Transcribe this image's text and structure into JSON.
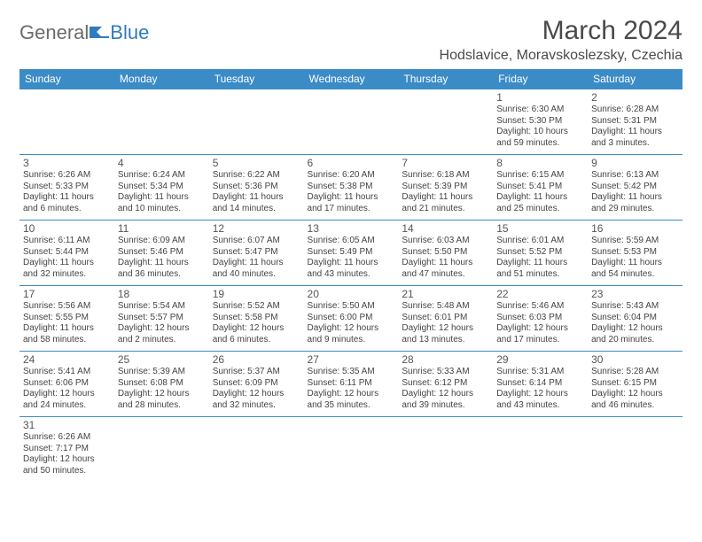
{
  "logo": {
    "text1": "General",
    "text2": "Blue"
  },
  "title": "March 2024",
  "location": "Hodslavice, Moravskoslezsky, Czechia",
  "colors": {
    "header_bg": "#3b8bc7",
    "header_text": "#ffffff",
    "border": "#3b8bc7",
    "logo_gray": "#6b6b6b",
    "logo_blue": "#2f7bbf",
    "text": "#444444"
  },
  "weekdays": [
    "Sunday",
    "Monday",
    "Tuesday",
    "Wednesday",
    "Thursday",
    "Friday",
    "Saturday"
  ],
  "weeks": [
    [
      null,
      null,
      null,
      null,
      null,
      {
        "n": "1",
        "sr": "Sunrise: 6:30 AM",
        "ss": "Sunset: 5:30 PM",
        "dl": "Daylight: 10 hours and 59 minutes."
      },
      {
        "n": "2",
        "sr": "Sunrise: 6:28 AM",
        "ss": "Sunset: 5:31 PM",
        "dl": "Daylight: 11 hours and 3 minutes."
      }
    ],
    [
      {
        "n": "3",
        "sr": "Sunrise: 6:26 AM",
        "ss": "Sunset: 5:33 PM",
        "dl": "Daylight: 11 hours and 6 minutes."
      },
      {
        "n": "4",
        "sr": "Sunrise: 6:24 AM",
        "ss": "Sunset: 5:34 PM",
        "dl": "Daylight: 11 hours and 10 minutes."
      },
      {
        "n": "5",
        "sr": "Sunrise: 6:22 AM",
        "ss": "Sunset: 5:36 PM",
        "dl": "Daylight: 11 hours and 14 minutes."
      },
      {
        "n": "6",
        "sr": "Sunrise: 6:20 AM",
        "ss": "Sunset: 5:38 PM",
        "dl": "Daylight: 11 hours and 17 minutes."
      },
      {
        "n": "7",
        "sr": "Sunrise: 6:18 AM",
        "ss": "Sunset: 5:39 PM",
        "dl": "Daylight: 11 hours and 21 minutes."
      },
      {
        "n": "8",
        "sr": "Sunrise: 6:15 AM",
        "ss": "Sunset: 5:41 PM",
        "dl": "Daylight: 11 hours and 25 minutes."
      },
      {
        "n": "9",
        "sr": "Sunrise: 6:13 AM",
        "ss": "Sunset: 5:42 PM",
        "dl": "Daylight: 11 hours and 29 minutes."
      }
    ],
    [
      {
        "n": "10",
        "sr": "Sunrise: 6:11 AM",
        "ss": "Sunset: 5:44 PM",
        "dl": "Daylight: 11 hours and 32 minutes."
      },
      {
        "n": "11",
        "sr": "Sunrise: 6:09 AM",
        "ss": "Sunset: 5:46 PM",
        "dl": "Daylight: 11 hours and 36 minutes."
      },
      {
        "n": "12",
        "sr": "Sunrise: 6:07 AM",
        "ss": "Sunset: 5:47 PM",
        "dl": "Daylight: 11 hours and 40 minutes."
      },
      {
        "n": "13",
        "sr": "Sunrise: 6:05 AM",
        "ss": "Sunset: 5:49 PM",
        "dl": "Daylight: 11 hours and 43 minutes."
      },
      {
        "n": "14",
        "sr": "Sunrise: 6:03 AM",
        "ss": "Sunset: 5:50 PM",
        "dl": "Daylight: 11 hours and 47 minutes."
      },
      {
        "n": "15",
        "sr": "Sunrise: 6:01 AM",
        "ss": "Sunset: 5:52 PM",
        "dl": "Daylight: 11 hours and 51 minutes."
      },
      {
        "n": "16",
        "sr": "Sunrise: 5:59 AM",
        "ss": "Sunset: 5:53 PM",
        "dl": "Daylight: 11 hours and 54 minutes."
      }
    ],
    [
      {
        "n": "17",
        "sr": "Sunrise: 5:56 AM",
        "ss": "Sunset: 5:55 PM",
        "dl": "Daylight: 11 hours and 58 minutes."
      },
      {
        "n": "18",
        "sr": "Sunrise: 5:54 AM",
        "ss": "Sunset: 5:57 PM",
        "dl": "Daylight: 12 hours and 2 minutes."
      },
      {
        "n": "19",
        "sr": "Sunrise: 5:52 AM",
        "ss": "Sunset: 5:58 PM",
        "dl": "Daylight: 12 hours and 6 minutes."
      },
      {
        "n": "20",
        "sr": "Sunrise: 5:50 AM",
        "ss": "Sunset: 6:00 PM",
        "dl": "Daylight: 12 hours and 9 minutes."
      },
      {
        "n": "21",
        "sr": "Sunrise: 5:48 AM",
        "ss": "Sunset: 6:01 PM",
        "dl": "Daylight: 12 hours and 13 minutes."
      },
      {
        "n": "22",
        "sr": "Sunrise: 5:46 AM",
        "ss": "Sunset: 6:03 PM",
        "dl": "Daylight: 12 hours and 17 minutes."
      },
      {
        "n": "23",
        "sr": "Sunrise: 5:43 AM",
        "ss": "Sunset: 6:04 PM",
        "dl": "Daylight: 12 hours and 20 minutes."
      }
    ],
    [
      {
        "n": "24",
        "sr": "Sunrise: 5:41 AM",
        "ss": "Sunset: 6:06 PM",
        "dl": "Daylight: 12 hours and 24 minutes."
      },
      {
        "n": "25",
        "sr": "Sunrise: 5:39 AM",
        "ss": "Sunset: 6:08 PM",
        "dl": "Daylight: 12 hours and 28 minutes."
      },
      {
        "n": "26",
        "sr": "Sunrise: 5:37 AM",
        "ss": "Sunset: 6:09 PM",
        "dl": "Daylight: 12 hours and 32 minutes."
      },
      {
        "n": "27",
        "sr": "Sunrise: 5:35 AM",
        "ss": "Sunset: 6:11 PM",
        "dl": "Daylight: 12 hours and 35 minutes."
      },
      {
        "n": "28",
        "sr": "Sunrise: 5:33 AM",
        "ss": "Sunset: 6:12 PM",
        "dl": "Daylight: 12 hours and 39 minutes."
      },
      {
        "n": "29",
        "sr": "Sunrise: 5:31 AM",
        "ss": "Sunset: 6:14 PM",
        "dl": "Daylight: 12 hours and 43 minutes."
      },
      {
        "n": "30",
        "sr": "Sunrise: 5:28 AM",
        "ss": "Sunset: 6:15 PM",
        "dl": "Daylight: 12 hours and 46 minutes."
      }
    ],
    [
      {
        "n": "31",
        "sr": "Sunrise: 6:26 AM",
        "ss": "Sunset: 7:17 PM",
        "dl": "Daylight: 12 hours and 50 minutes."
      },
      null,
      null,
      null,
      null,
      null,
      null
    ]
  ]
}
